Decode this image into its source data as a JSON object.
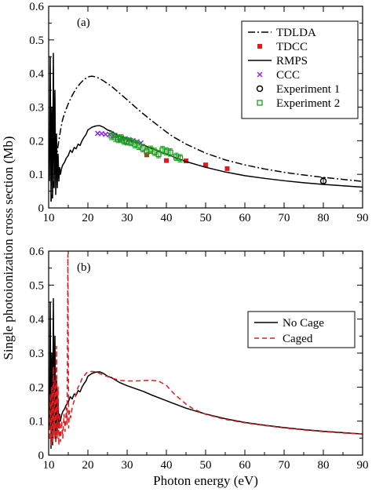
{
  "shared": {
    "ylabel": "Single photoionization cross section (Mb)",
    "xlabel": "Photon energy (eV)"
  },
  "chart_data": [
    {
      "type": "line",
      "panel_label": "(a)",
      "xlim": [
        10,
        90
      ],
      "ylim": [
        0,
        0.6
      ],
      "x_ticks": [
        10,
        20,
        30,
        40,
        50,
        60,
        70,
        80,
        90
      ],
      "y_ticks": [
        0,
        0.1,
        0.2,
        0.3,
        0.4,
        0.5,
        0.6
      ],
      "x_tick_labels": [
        "10",
        "20",
        "30",
        "40",
        "50",
        "60",
        "70",
        "80",
        "90"
      ],
      "y_tick_labels": [
        "0",
        "0.1",
        "0.2",
        "0.3",
        "0.4",
        "0.5",
        "0.6"
      ],
      "legend_position": "upper-right",
      "series": [
        {
          "name": "TDLDA",
          "kind": "line",
          "style": "dash-dot",
          "color": "#000000",
          "x": [
            10.6,
            11.0,
            11.4,
            11.8,
            12.2,
            12.6,
            13.0,
            13.5,
            14.0,
            15.0,
            16.0,
            17.0,
            18.0,
            19.0,
            20.0,
            21.0,
            22.0,
            23.0,
            24.0,
            26.0,
            28.0,
            30.0,
            32.0,
            34.0,
            36.0,
            38.0,
            40.0,
            42.0,
            45.0,
            50.0,
            55.0,
            60.0,
            65.0,
            70.0,
            75.0,
            80.0,
            85.0,
            90.0
          ],
          "y": [
            0.02,
            0.05,
            0.09,
            0.13,
            0.17,
            0.2,
            0.23,
            0.26,
            0.28,
            0.31,
            0.335,
            0.355,
            0.37,
            0.382,
            0.39,
            0.392,
            0.39,
            0.385,
            0.378,
            0.362,
            0.342,
            0.322,
            0.301,
            0.281,
            0.262,
            0.244,
            0.226,
            0.21,
            0.19,
            0.163,
            0.143,
            0.128,
            0.116,
            0.106,
            0.098,
            0.091,
            0.085,
            0.079
          ]
        },
        {
          "name": "TDCC",
          "kind": "markers",
          "marker": "filled-square",
          "color": "#e41a1c",
          "x": [
            35.0,
            40.0,
            45.0,
            50.0,
            55.5
          ],
          "y": [
            0.158,
            0.141,
            0.14,
            0.128,
            0.117
          ]
        },
        {
          "name": "RMPS",
          "kind": "line",
          "style": "solid",
          "color": "#000000",
          "x": [
            10.2,
            10.4,
            10.6,
            10.8,
            11.0,
            11.2,
            11.4,
            11.6,
            11.8,
            12.0,
            12.2,
            12.4,
            12.6,
            12.8,
            13.0,
            13.3,
            13.6,
            14.0,
            14.5,
            15.0,
            15.5,
            16.0,
            16.5,
            17.0,
            17.5,
            18.0,
            18.5,
            19.0,
            19.5,
            20.0,
            21.0,
            22.0,
            23.0,
            24.0,
            25.0,
            26.0,
            27.0,
            28.0,
            30.0,
            32.0,
            34.0,
            36.0,
            38.0,
            40.0,
            45.0,
            50.0,
            55.0,
            60.0,
            65.0,
            70.0,
            75.0,
            80.0,
            85.0,
            90.0
          ],
          "y": [
            0.08,
            0.45,
            0.02,
            0.3,
            0.03,
            0.46,
            0.06,
            0.35,
            0.04,
            0.22,
            0.06,
            0.16,
            0.08,
            0.12,
            0.1,
            0.118,
            0.128,
            0.135,
            0.148,
            0.156,
            0.172,
            0.165,
            0.18,
            0.176,
            0.19,
            0.186,
            0.2,
            0.21,
            0.218,
            0.232,
            0.24,
            0.244,
            0.245,
            0.24,
            0.232,
            0.228,
            0.221,
            0.214,
            0.204,
            0.196,
            0.188,
            0.178,
            0.169,
            0.16,
            0.138,
            0.121,
            0.107,
            0.096,
            0.088,
            0.081,
            0.075,
            0.07,
            0.066,
            0.062
          ]
        },
        {
          "name": "CCC",
          "kind": "markers",
          "marker": "cross",
          "color": "#8a2be2",
          "x": [
            22.5,
            23.5,
            24.5,
            25.5,
            26.5,
            27.5,
            28.5,
            29.5,
            30.5,
            31.5,
            32.5,
            33.5
          ],
          "y": [
            0.222,
            0.221,
            0.219,
            0.218,
            0.215,
            0.212,
            0.209,
            0.206,
            0.203,
            0.2,
            0.197,
            0.193
          ]
        },
        {
          "name": "Experiment 1",
          "kind": "markers",
          "marker": "open-circle",
          "color": "#000000",
          "x": [
            80.0
          ],
          "y": [
            0.08
          ],
          "yerr": [
            0.01
          ]
        },
        {
          "name": "Experiment 2",
          "kind": "markers",
          "marker": "open-square",
          "color": "#1a9a1a",
          "x": [
            26.0,
            27.0,
            27.7,
            28.5,
            29.2,
            30.0,
            31.0,
            32.0,
            33.0,
            34.0,
            35.0,
            36.0,
            37.0,
            38.0,
            39.0,
            40.0,
            41.0,
            42.5,
            43.5
          ],
          "y": [
            0.215,
            0.21,
            0.205,
            0.207,
            0.2,
            0.198,
            0.196,
            0.19,
            0.185,
            0.178,
            0.168,
            0.173,
            0.167,
            0.16,
            0.172,
            0.168,
            0.165,
            0.152,
            0.148
          ],
          "yerr": [
            0.012,
            0.012,
            0.011,
            0.011,
            0.011,
            0.011,
            0.011,
            0.011,
            0.011,
            0.011,
            0.011,
            0.011,
            0.011,
            0.011,
            0.011,
            0.011,
            0.011,
            0.011,
            0.011
          ]
        }
      ]
    },
    {
      "type": "line",
      "panel_label": "(b)",
      "xlim": [
        10,
        90
      ],
      "ylim": [
        0,
        0.6
      ],
      "x_ticks": [
        10,
        20,
        30,
        40,
        50,
        60,
        70,
        80,
        90
      ],
      "y_ticks": [
        0,
        0.1,
        0.2,
        0.3,
        0.4,
        0.5,
        0.6
      ],
      "x_tick_labels": [
        "10",
        "20",
        "30",
        "40",
        "50",
        "60",
        "70",
        "80",
        "90"
      ],
      "y_tick_labels": [
        "0",
        "0.1",
        "0.2",
        "0.3",
        "0.4",
        "0.5",
        "0.6"
      ],
      "legend_position": "right",
      "series": [
        {
          "name": "No Cage",
          "kind": "line",
          "style": "solid",
          "color": "#000000",
          "x": [
            10.2,
            10.4,
            10.6,
            10.8,
            11.0,
            11.2,
            11.4,
            11.6,
            11.8,
            12.0,
            12.2,
            12.4,
            12.6,
            12.8,
            13.0,
            13.3,
            13.6,
            14.0,
            14.5,
            15.0,
            15.5,
            16.0,
            16.5,
            17.0,
            17.5,
            18.0,
            18.5,
            19.0,
            19.5,
            20.0,
            21.0,
            22.0,
            23.0,
            24.0,
            25.0,
            26.0,
            27.0,
            28.0,
            30.0,
            32.0,
            34.0,
            36.0,
            38.0,
            40.0,
            45.0,
            50.0,
            55.0,
            60.0,
            65.0,
            70.0,
            75.0,
            80.0,
            85.0,
            90.0
          ],
          "y": [
            0.08,
            0.45,
            0.02,
            0.3,
            0.03,
            0.46,
            0.06,
            0.35,
            0.04,
            0.22,
            0.06,
            0.16,
            0.08,
            0.12,
            0.1,
            0.118,
            0.128,
            0.135,
            0.148,
            0.156,
            0.172,
            0.165,
            0.18,
            0.176,
            0.19,
            0.186,
            0.2,
            0.21,
            0.218,
            0.232,
            0.24,
            0.244,
            0.245,
            0.24,
            0.232,
            0.228,
            0.221,
            0.214,
            0.204,
            0.196,
            0.188,
            0.178,
            0.169,
            0.16,
            0.138,
            0.121,
            0.107,
            0.096,
            0.088,
            0.081,
            0.075,
            0.07,
            0.066,
            0.062
          ]
        },
        {
          "name": "Caged",
          "kind": "line",
          "style": "dashed",
          "color": "#e41a1c",
          "x": [
            10.2,
            10.4,
            10.6,
            10.8,
            11.0,
            11.2,
            11.4,
            11.6,
            11.8,
            12.0,
            12.2,
            12.4,
            12.6,
            12.8,
            13.0,
            13.3,
            13.6,
            13.9,
            14.2,
            14.5,
            14.7,
            14.9,
            15.1,
            15.3,
            15.6,
            16.0,
            16.5,
            17.0,
            17.5,
            18.0,
            18.5,
            19.0,
            19.5,
            20.0,
            21.0,
            22.0,
            23.0,
            24.0,
            26.0,
            28.0,
            30.0,
            32.0,
            34.0,
            36.0,
            38.0,
            40.0,
            42.0,
            45.0,
            47.0,
            50.0,
            55.0,
            60.0,
            65.0,
            70.0,
            75.0,
            80.0,
            85.0,
            90.0
          ],
          "y": [
            0.05,
            0.18,
            0.03,
            0.2,
            0.04,
            0.26,
            0.05,
            0.22,
            0.04,
            0.32,
            0.05,
            0.2,
            0.03,
            0.12,
            0.04,
            0.1,
            0.05,
            0.12,
            0.07,
            0.14,
            0.09,
            0.59,
            0.08,
            0.13,
            0.11,
            0.14,
            0.16,
            0.18,
            0.2,
            0.21,
            0.225,
            0.232,
            0.24,
            0.245,
            0.246,
            0.245,
            0.24,
            0.235,
            0.227,
            0.22,
            0.218,
            0.218,
            0.219,
            0.22,
            0.218,
            0.205,
            0.18,
            0.15,
            0.135,
            0.12,
            0.105,
            0.095,
            0.087,
            0.08,
            0.074,
            0.069,
            0.065,
            0.062
          ]
        }
      ]
    }
  ]
}
